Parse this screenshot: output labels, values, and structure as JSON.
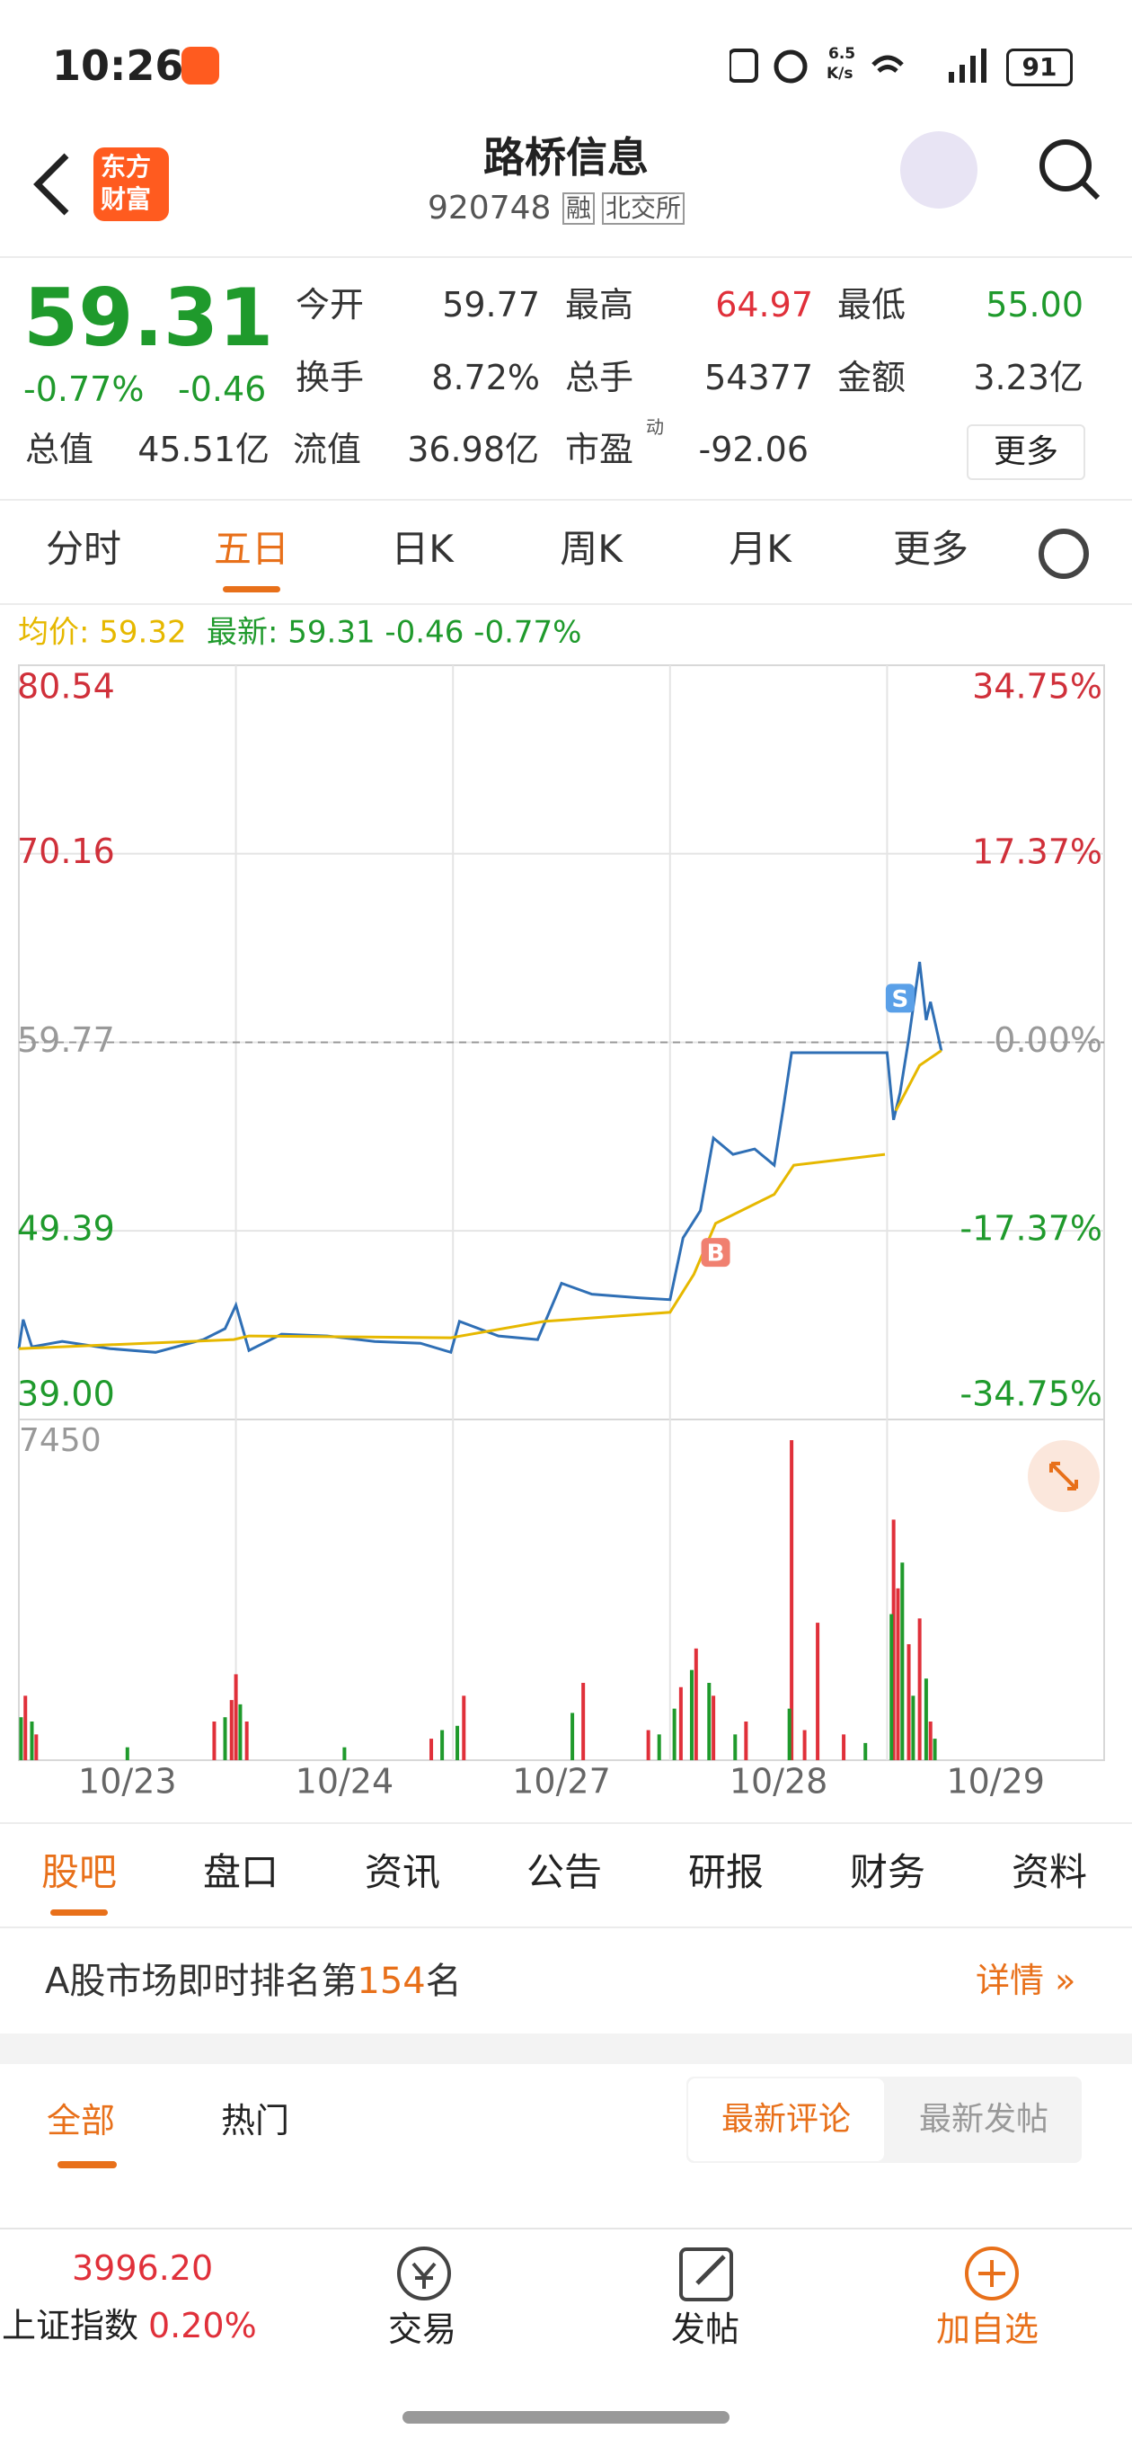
{
  "status_bar": {
    "time": "10:26",
    "net_speed": [
      "6.5",
      "K/s"
    ],
    "battery": "91"
  },
  "header": {
    "logo": [
      "东方",
      "财富"
    ],
    "title": "路桥信息",
    "code": "920748",
    "tags": [
      "融",
      "北交所"
    ]
  },
  "quote": {
    "price": "59.31",
    "change_pct": "-0.77%",
    "change": "-0.46",
    "more": "更多",
    "fields": [
      {
        "label": "今开",
        "value": "59.77",
        "color": "#333333"
      },
      {
        "label": "最高",
        "value": "64.97",
        "color": "#e0303a"
      },
      {
        "label": "最低",
        "value": "55.00",
        "color": "#1f9a2c"
      },
      {
        "label": "换手",
        "value": "8.72%",
        "color": "#333333"
      },
      {
        "label": "总手",
        "value": "54377",
        "color": "#333333"
      },
      {
        "label": "金额",
        "value": "3.23亿",
        "color": "#333333"
      },
      {
        "label": "总值",
        "value": "45.51亿",
        "color": "#333333"
      },
      {
        "label": "流值",
        "value": "36.98亿",
        "color": "#333333"
      },
      {
        "label": "市盈",
        "value": "-92.06",
        "color": "#333333",
        "sup": "动"
      }
    ]
  },
  "tabs": {
    "items": [
      "分时",
      "五日",
      "日K",
      "周K",
      "月K",
      "更多"
    ],
    "active": 1
  },
  "chart_data": {
    "type": "line",
    "legend": [
      {
        "text": "均价: 59.32",
        "color": "#e6b800"
      },
      {
        "text": "最新: 59.31 -0.46 -0.77%",
        "color": "#1f9a2c"
      }
    ],
    "xlim": [
      0,
      5
    ],
    "x_labels": [
      "10/23",
      "10/24",
      "10/27",
      "10/28",
      "10/29"
    ],
    "ylim": [
      39.0,
      80.54
    ],
    "yticks": [
      {
        "value": 80.54,
        "label": "80.54"
      },
      {
        "value": 70.16,
        "label": "70.16"
      },
      {
        "value": 59.77,
        "label": "59.77"
      },
      {
        "value": 49.39,
        "label": "49.39"
      },
      {
        "value": 39.0,
        "label": "39.00"
      }
    ],
    "y2lim": [
      -34.75,
      34.75
    ],
    "y2ticks": [
      {
        "value": 34.75,
        "label": "34.75%"
      },
      {
        "value": 17.37,
        "label": "17.37%"
      },
      {
        "value": 0,
        "label": "0.00%"
      },
      {
        "value": -17.37,
        "label": "-17.37%"
      },
      {
        "value": -34.75,
        "label": "-34.75%"
      }
    ],
    "grid": true,
    "series": [
      {
        "color": "#2f6fb5",
        "x": [
          0,
          0.02,
          0.06,
          0.2,
          0.42,
          0.63,
          0.85,
          0.95,
          1.0,
          1.06,
          1.21,
          1.42,
          1.64,
          1.85,
          1.99,
          2.03,
          2.21,
          2.39,
          2.5,
          2.64,
          2.86,
          3.0,
          3.06,
          3.14,
          3.2,
          3.29,
          3.39,
          3.48,
          3.52,
          3.56,
          3.68,
          4.0,
          4.03,
          4.06,
          4.1,
          4.15,
          4.18,
          4.2,
          4.25
        ],
        "values": [
          42.9,
          44.5,
          43.0,
          43.3,
          42.9,
          42.7,
          43.4,
          44.0,
          45.3,
          42.8,
          43.7,
          43.6,
          43.3,
          43.2,
          42.7,
          44.4,
          43.6,
          43.4,
          46.5,
          45.9,
          45.7,
          45.6,
          49.0,
          50.5,
          54.5,
          53.6,
          53.9,
          53.0,
          56.0,
          59.2,
          59.2,
          59.2,
          55.5,
          57.0,
          60.0,
          64.2,
          61.0,
          62.0,
          59.31
        ]
      },
      {
        "color": "#e6b800",
        "x": [
          0,
          0.99,
          1.06,
          1.99,
          2.42,
          3.0,
          3.11,
          3.21,
          3.48,
          3.57,
          3.99,
          4.01,
          4.04,
          4.15,
          4.25
        ],
        "values": [
          42.9,
          43.4,
          43.6,
          43.5,
          44.4,
          44.9,
          47.0,
          49.8,
          51.4,
          53.0,
          53.6,
          null,
          56.0,
          58.5,
          59.32
        ]
      }
    ],
    "markers": [
      {
        "label": "B",
        "x": 3.21,
        "value": 48.2,
        "color": "#f08070"
      },
      {
        "label": "S",
        "x": 4.06,
        "value": 62.2,
        "color": "#5aa0e8"
      }
    ],
    "volume": {
      "label": "7450",
      "ylim": [
        0,
        7450
      ],
      "series": [
        {
          "color": "#e0303a",
          "x": [
            0.03,
            0.08,
            0.9,
            0.98,
            1.0,
            1.05,
            1.9,
            2.05,
            2.6,
            2.9,
            3.05,
            3.12,
            3.2,
            3.35,
            3.56,
            3.62,
            3.68,
            3.8,
            4.03,
            4.05,
            4.1,
            4.15,
            4.2
          ],
          "values": [
            1500,
            600,
            900,
            1400,
            2000,
            900,
            500,
            1500,
            1800,
            700,
            1700,
            2600,
            1500,
            900,
            7450,
            700,
            3200,
            600,
            5600,
            4000,
            2700,
            3300,
            900
          ]
        },
        {
          "color": "#1f9a2c",
          "x": [
            0.01,
            0.06,
            0.5,
            0.95,
            1.02,
            1.5,
            1.95,
            2.02,
            2.55,
            2.95,
            3.02,
            3.1,
            3.18,
            3.3,
            3.55,
            3.9,
            4.02,
            4.07,
            4.12,
            4.18,
            4.22
          ],
          "values": [
            1000,
            900,
            300,
            1000,
            1300,
            300,
            700,
            800,
            1100,
            600,
            1200,
            2100,
            1800,
            600,
            1200,
            400,
            3400,
            4600,
            1500,
            1900,
            500
          ]
        }
      ]
    }
  },
  "section_tabs": {
    "items": [
      "股吧",
      "盘口",
      "资讯",
      "公告",
      "研报",
      "财务",
      "资料"
    ],
    "active": 0
  },
  "ranking": {
    "before": "A股市场即时排名第",
    "rank": "154",
    "after": "名",
    "detail": "详情"
  },
  "feed": {
    "tabs": [
      "全部",
      "热门"
    ],
    "sort": [
      "最新评论",
      "最新发帖"
    ]
  },
  "bottom_bar": {
    "index_value": "3996.20",
    "index_name": "上证指数",
    "index_change": "0.20%",
    "actions": [
      "交易",
      "发帖",
      "加自选"
    ]
  }
}
